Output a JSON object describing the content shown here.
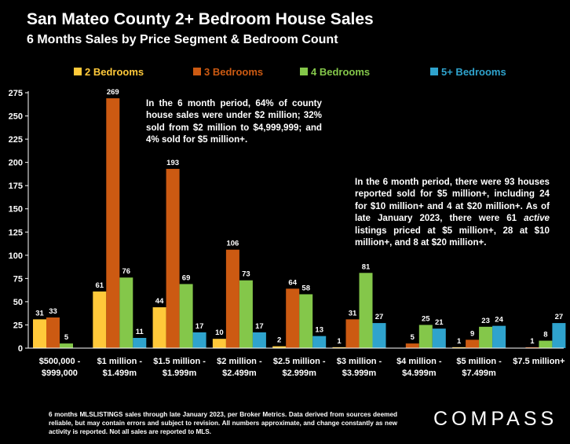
{
  "chart_data": {
    "type": "bar",
    "title": "San Mateo County 2+ Bedroom House Sales",
    "subtitle": "6 Months Sales by Price Segment & Bedroom Count",
    "categories": [
      [
        "$500,000 -",
        "$999,000"
      ],
      [
        "$1 million -",
        "$1.499m"
      ],
      [
        "$1.5 million -",
        "$1.999m"
      ],
      [
        "$2 million -",
        "$2.499m"
      ],
      [
        "$2.5 million -",
        "$2.999m"
      ],
      [
        "$3 million -",
        "$3.999m"
      ],
      [
        "$4 million -",
        "$4.999m"
      ],
      [
        "$5 million -",
        "$7.499m"
      ],
      [
        "$7.5 million+"
      ]
    ],
    "series": [
      {
        "name": "2 Bedrooms",
        "color": "#FFC93A",
        "values": [
          31,
          61,
          44,
          10,
          2,
          1,
          0,
          1,
          0
        ]
      },
      {
        "name": "3 Bedrooms",
        "color": "#CC5A12",
        "values": [
          33,
          269,
          193,
          106,
          64,
          31,
          5,
          9,
          1
        ]
      },
      {
        "name": "4 Bedrooms",
        "color": "#84C74A",
        "values": [
          5,
          76,
          69,
          73,
          58,
          81,
          25,
          23,
          8
        ]
      },
      {
        "name": "5+ Bedrooms",
        "color": "#2FA3CD",
        "values": [
          0,
          11,
          17,
          17,
          13,
          27,
          21,
          24,
          27
        ]
      }
    ],
    "data_labels": [
      [
        "31",
        "33",
        "5",
        ""
      ],
      [
        "61",
        "269",
        "76",
        "11"
      ],
      [
        "44",
        "193",
        "69",
        "17"
      ],
      [
        "10",
        "106",
        "73",
        "17"
      ],
      [
        "2",
        "64",
        "58",
        "13"
      ],
      [
        "1",
        "31",
        "81",
        "27"
      ],
      [
        "",
        "5",
        "25",
        "21"
      ],
      [
        "1",
        "9",
        "23",
        "24"
      ],
      [
        "",
        "1",
        "8",
        "27"
      ]
    ],
    "y_ticks": [
      0,
      25,
      50,
      75,
      100,
      125,
      150,
      175,
      200,
      225,
      250,
      275
    ],
    "ylim": [
      0,
      275
    ],
    "grid": false,
    "legend_position": "top"
  },
  "annotations": {
    "note1": "In the 6 month period, 64% of county house sales were under $2 million; 32% sold from $2 million to $4,999,999; and 4% sold for $5 million+.",
    "note2_part1": "In the 6 month period, there were 93 houses reported sold for $5 million+, including 24 for $10 million+ and 4 at $20 million+. As of late January 2023, there were 61 ",
    "note2_em": "active",
    "note2_part2": " listings priced at $5 million+, 28 at $10 million+, and 8 at $20 million+."
  },
  "footer": "6 months MLSLISTINGS sales through late January 2023, per Broker Metrics. Data derived from sources deemed reliable, but may contain errors and subject to revision. All numbers approximate, and change constantly as new activity is reported. Not all sales are reported to MLS.",
  "logo": "COMPASS"
}
